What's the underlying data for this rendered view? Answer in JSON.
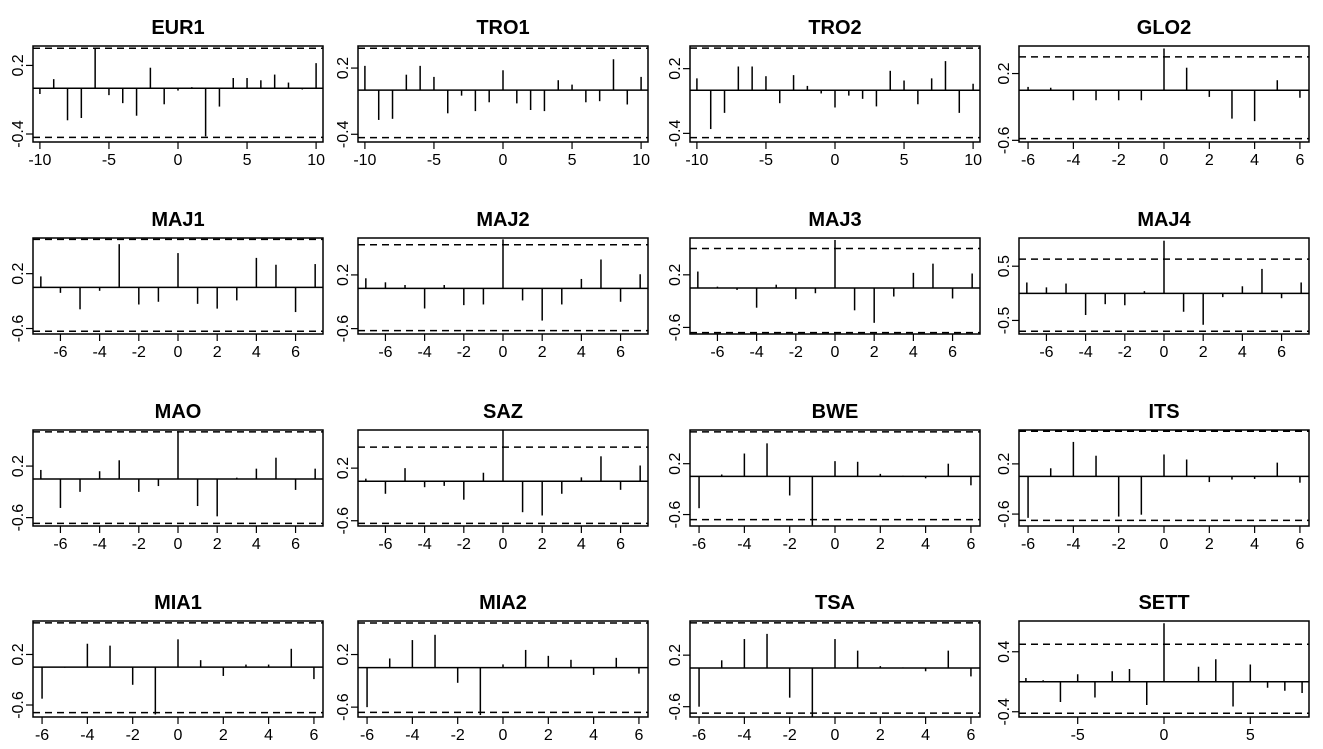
{
  "chart_data": [
    {
      "type": "bar",
      "title": "EUR1",
      "yticks": [
        "-0.4",
        "0.2"
      ],
      "ylim": [
        -0.47,
        0.37
      ],
      "xticks": [
        -10,
        -5,
        0,
        5,
        10
      ],
      "xlim": [
        -10.5,
        10.5
      ],
      "band": [
        0.35,
        -0.43
      ],
      "lags": [
        -10,
        -9,
        -8,
        -7,
        -6,
        -5,
        -4,
        -3,
        -2,
        -1,
        0,
        1,
        2,
        3,
        4,
        5,
        6,
        7,
        8,
        9,
        10
      ],
      "values": [
        -0.05,
        0.08,
        -0.28,
        -0.26,
        0.35,
        -0.06,
        -0.13,
        -0.24,
        0.18,
        -0.14,
        -0.02,
        0.01,
        -0.42,
        -0.16,
        0.09,
        0.09,
        0.07,
        0.12,
        0.05,
        -0.01,
        0.22
      ]
    },
    {
      "type": "bar",
      "title": "TRO1",
      "yticks": [
        "-0.4",
        "0.2"
      ],
      "ylim": [
        -0.47,
        0.4
      ],
      "xticks": [
        -10,
        -5,
        0,
        5,
        10
      ],
      "xlim": [
        -10.5,
        10.5
      ],
      "band": [
        0.38,
        -0.43
      ],
      "lags": [
        -10,
        -9,
        -8,
        -7,
        -6,
        -5,
        -4,
        -3,
        -2,
        -1,
        0,
        1,
        2,
        3,
        4,
        5,
        6,
        7,
        8,
        9,
        10
      ],
      "values": [
        0.22,
        -0.27,
        -0.26,
        0.14,
        0.22,
        0.12,
        -0.21,
        -0.05,
        -0.19,
        -0.11,
        0.18,
        -0.12,
        -0.18,
        -0.19,
        0.09,
        0.05,
        -0.11,
        -0.1,
        0.28,
        -0.13,
        0.12
      ]
    },
    {
      "type": "bar",
      "title": "TRO2",
      "yticks": [
        "-0.4",
        "0.2"
      ],
      "ylim": [
        -0.48,
        0.41
      ],
      "xticks": [
        -10,
        -5,
        0,
        5,
        10
      ],
      "xlim": [
        -10.5,
        10.5
      ],
      "band": [
        0.39,
        -0.44
      ],
      "lags": [
        -10,
        -9,
        -8,
        -7,
        -6,
        -5,
        -4,
        -3,
        -2,
        -1,
        0,
        1,
        2,
        3,
        4,
        5,
        6,
        7,
        8,
        9,
        10
      ],
      "values": [
        0.11,
        -0.36,
        -0.21,
        0.22,
        0.22,
        0.13,
        -0.12,
        0.14,
        0.04,
        -0.03,
        -0.16,
        -0.05,
        -0.08,
        -0.15,
        0.18,
        0.09,
        -0.13,
        0.11,
        0.27,
        -0.21,
        0.06
      ]
    },
    {
      "type": "bar",
      "title": "GLO2",
      "yticks": [
        "-0.6",
        "0.2"
      ],
      "ylim": [
        -0.62,
        0.53
      ],
      "xticks": [
        -6,
        -4,
        -2,
        0,
        2,
        4,
        6
      ],
      "xlim": [
        -6.4,
        6.4
      ],
      "band": [
        0.4,
        -0.58
      ],
      "lags": [
        -6,
        -5,
        -4,
        -3,
        -2,
        -1,
        0,
        1,
        2,
        3,
        4,
        5,
        6
      ],
      "values": [
        0.04,
        0.03,
        -0.12,
        -0.12,
        -0.12,
        -0.12,
        0.5,
        0.27,
        -0.08,
        -0.34,
        -0.37,
        0.12,
        -0.09
      ]
    },
    {
      "type": "bar",
      "title": "MAJ1",
      "yticks": [
        "-0.6",
        "0.2"
      ],
      "ylim": [
        -0.68,
        0.72
      ],
      "xticks": [
        -6,
        -4,
        -2,
        0,
        2,
        4,
        6
      ],
      "xlim": [
        -7.4,
        7.4
      ],
      "band": [
        0.7,
        -0.64
      ],
      "lags": [
        -7,
        -6,
        -5,
        -4,
        -3,
        -2,
        -1,
        0,
        1,
        2,
        3,
        4,
        5,
        6,
        7
      ],
      "values": [
        0.16,
        -0.08,
        -0.32,
        -0.05,
        0.63,
        -0.25,
        -0.21,
        0.5,
        -0.24,
        -0.31,
        -0.19,
        0.43,
        0.33,
        -0.36,
        0.34
      ]
    },
    {
      "type": "bar",
      "title": "MAJ2",
      "yticks": [
        "-0.6",
        "0.2"
      ],
      "ylim": [
        -0.68,
        0.75
      ],
      "xticks": [
        -6,
        -4,
        -2,
        0,
        2,
        4,
        6
      ],
      "xlim": [
        -7.4,
        7.4
      ],
      "band": [
        0.65,
        -0.63
      ],
      "lags": [
        -7,
        -6,
        -5,
        -4,
        -3,
        -2,
        -1,
        0,
        1,
        2,
        3,
        4,
        5,
        6,
        7
      ],
      "values": [
        0.15,
        0.09,
        0.05,
        -0.3,
        0.05,
        -0.25,
        -0.24,
        0.73,
        -0.18,
        -0.48,
        -0.24,
        0.14,
        0.43,
        -0.2,
        0.21
      ]
    },
    {
      "type": "bar",
      "title": "MAJ3",
      "yticks": [
        "-0.6",
        "0.2"
      ],
      "ylim": [
        -0.7,
        0.76
      ],
      "xticks": [
        -6,
        -4,
        -2,
        0,
        2,
        4,
        6
      ],
      "xlim": [
        -7.4,
        7.4
      ],
      "band": [
        0.6,
        -0.68
      ],
      "lags": [
        -7,
        -6,
        -5,
        -4,
        -3,
        -2,
        -1,
        0,
        1,
        2,
        3,
        4,
        5,
        6,
        7
      ],
      "values": [
        0.25,
        0.02,
        -0.03,
        -0.3,
        0.05,
        -0.17,
        -0.08,
        0.73,
        -0.34,
        -0.53,
        -0.13,
        0.23,
        0.37,
        -0.16,
        0.22
      ]
    },
    {
      "type": "bar",
      "title": "MAJ4",
      "yticks": [
        "-0.5",
        "0.5"
      ],
      "ylim": [
        -0.75,
        1.02
      ],
      "xticks": [
        -6,
        -4,
        -2,
        0,
        2,
        4,
        6
      ],
      "xlim": [
        -7.4,
        7.4
      ],
      "band": [
        0.63,
        -0.7
      ],
      "lags": [
        -7,
        -6,
        -5,
        -4,
        -3,
        -2,
        -1,
        0,
        1,
        2,
        3,
        4,
        5,
        6,
        7
      ],
      "values": [
        0.2,
        0.11,
        0.18,
        -0.4,
        -0.2,
        -0.22,
        0.04,
        0.97,
        -0.34,
        -0.58,
        -0.07,
        0.13,
        0.45,
        -0.09,
        0.2
      ]
    },
    {
      "type": "bar",
      "title": "MAO",
      "yticks": [
        "-0.6",
        "0.2"
      ],
      "ylim": [
        -0.73,
        0.76
      ],
      "xticks": [
        -6,
        -4,
        -2,
        0,
        2,
        4,
        6
      ],
      "xlim": [
        -7.4,
        7.4
      ],
      "band": [
        0.73,
        -0.69
      ],
      "lags": [
        -7,
        -6,
        -5,
        -4,
        -3,
        -2,
        -1,
        0,
        1,
        2,
        3,
        4,
        5,
        6,
        7
      ],
      "values": [
        0.14,
        -0.45,
        -0.2,
        0.12,
        0.29,
        -0.2,
        -0.11,
        0.74,
        -0.42,
        -0.58,
        0.02,
        0.16,
        0.33,
        -0.17,
        0.16
      ]
    },
    {
      "type": "bar",
      "title": "SAZ",
      "yticks": [
        "-0.6",
        "0.2"
      ],
      "ylim": [
        -0.68,
        0.78
      ],
      "xticks": [
        -6,
        -4,
        -2,
        0,
        2,
        4,
        6
      ],
      "xlim": [
        -7.4,
        7.4
      ],
      "band": [
        0.52,
        -0.64
      ],
      "lags": [
        -7,
        -6,
        -5,
        -4,
        -3,
        -2,
        -1,
        0,
        1,
        2,
        3,
        4,
        5,
        6,
        7
      ],
      "values": [
        0.04,
        -0.19,
        0.2,
        -0.09,
        -0.07,
        -0.28,
        0.13,
        0.78,
        -0.47,
        -0.52,
        -0.19,
        0.06,
        0.38,
        -0.13,
        0.24
      ]
    },
    {
      "type": "bar",
      "title": "BWE",
      "yticks": [
        "-0.6",
        "0.2"
      ],
      "ylim": [
        -0.78,
        0.73
      ],
      "xticks": [
        -6,
        -4,
        -2,
        0,
        2,
        4,
        6
      ],
      "xlim": [
        -6.4,
        6.4
      ],
      "band": [
        0.7,
        -0.68
      ],
      "lags": [
        -6,
        -5,
        -4,
        -3,
        -2,
        -1,
        0,
        1,
        2,
        3,
        4,
        5,
        6
      ],
      "values": [
        -0.5,
        0.03,
        0.36,
        0.52,
        -0.3,
        -0.77,
        0.24,
        0.23,
        0.04,
        0.01,
        -0.03,
        0.2,
        -0.14
      ]
    },
    {
      "type": "bar",
      "title": "ITS",
      "yticks": [
        "-0.6",
        "0.2"
      ],
      "ylim": [
        -0.79,
        0.74
      ],
      "xticks": [
        -6,
        -4,
        -2,
        0,
        2,
        4,
        6
      ],
      "xlim": [
        -6.4,
        6.4
      ],
      "band": [
        0.72,
        -0.7
      ],
      "lags": [
        -6,
        -5,
        -4,
        -3,
        -2,
        -1,
        0,
        1,
        2,
        3,
        4,
        5,
        6
      ],
      "values": [
        -0.66,
        0.13,
        0.55,
        0.33,
        -0.64,
        -0.61,
        0.35,
        0.27,
        -0.09,
        -0.05,
        -0.04,
        0.22,
        -0.1
      ]
    },
    {
      "type": "bar",
      "title": "MIA1",
      "yticks": [
        "-0.6",
        "0.2"
      ],
      "ylim": [
        -0.79,
        0.73
      ],
      "xticks": [
        -6,
        -4,
        -2,
        0,
        2,
        4,
        6
      ],
      "xlim": [
        -6.4,
        6.4
      ],
      "band": [
        0.7,
        -0.72
      ],
      "lags": [
        -6,
        -5,
        -4,
        -3,
        -2,
        -1,
        0,
        1,
        2,
        3,
        4,
        5,
        6
      ],
      "values": [
        -0.5,
        -0.01,
        0.37,
        0.34,
        -0.28,
        -0.75,
        0.44,
        0.11,
        -0.14,
        0.04,
        0.04,
        0.29,
        -0.19
      ]
    },
    {
      "type": "bar",
      "title": "MIA2",
      "yticks": [
        "-0.6",
        "0.2"
      ],
      "ylim": [
        -0.75,
        0.71
      ],
      "xticks": [
        -6,
        -4,
        -2,
        0,
        2,
        4,
        6
      ],
      "xlim": [
        -6.4,
        6.4
      ],
      "band": [
        0.68,
        -0.68
      ],
      "lags": [
        -6,
        -5,
        -4,
        -3,
        -2,
        -1,
        0,
        1,
        2,
        3,
        4,
        5,
        6
      ],
      "values": [
        -0.6,
        0.14,
        0.42,
        0.5,
        -0.23,
        -0.72,
        0.05,
        0.27,
        0.18,
        0.12,
        -0.11,
        0.15,
        -0.09
      ]
    },
    {
      "type": "bar",
      "title": "TSA",
      "yticks": [
        "-0.6",
        "0.2"
      ],
      "ylim": [
        -0.76,
        0.73
      ],
      "xticks": [
        -6,
        -4,
        -2,
        0,
        2,
        4,
        6
      ],
      "xlim": [
        -6.4,
        6.4
      ],
      "band": [
        0.7,
        -0.7
      ],
      "lags": [
        -6,
        -5,
        -4,
        -3,
        -2,
        -1,
        0,
        1,
        2,
        3,
        4,
        5,
        6
      ],
      "values": [
        -0.6,
        0.12,
        0.45,
        0.53,
        -0.46,
        -0.76,
        0.45,
        0.27,
        0.03,
        0.01,
        -0.05,
        0.27,
        -0.13
      ]
    },
    {
      "type": "bar",
      "title": "SETT",
      "yticks": [
        "-0.4",
        "0.4"
      ],
      "ylim": [
        -0.47,
        0.81
      ],
      "xticks": [
        -5,
        0,
        5
      ],
      "xlim": [
        -8.4,
        8.4
      ],
      "band": [
        0.5,
        -0.42
      ],
      "lags": [
        -8,
        -7,
        -6,
        -5,
        -4,
        -3,
        -2,
        -1,
        0,
        1,
        2,
        3,
        4,
        5,
        6,
        7,
        8
      ],
      "values": [
        0.05,
        0.02,
        -0.27,
        0.1,
        -0.21,
        0.14,
        0.17,
        -0.31,
        0.78,
        0.01,
        0.2,
        0.3,
        -0.33,
        0.23,
        -0.08,
        -0.12,
        -0.15
      ]
    }
  ]
}
